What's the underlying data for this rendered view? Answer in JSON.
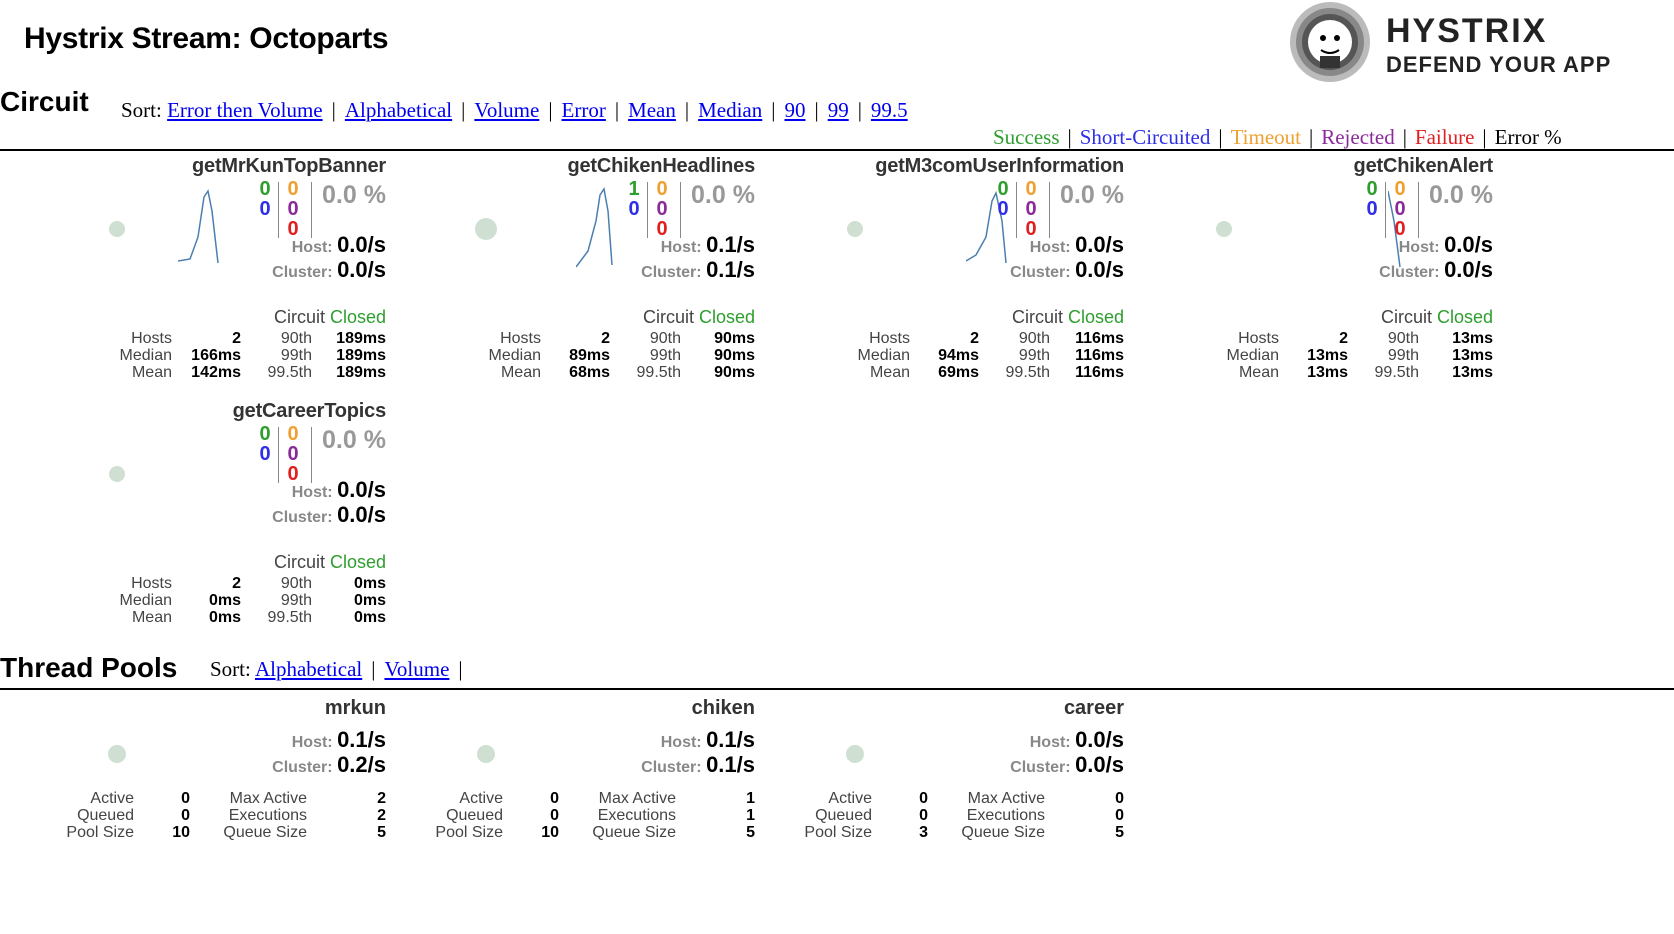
{
  "page": {
    "title": "Hystrix Stream: Octoparts"
  },
  "logo": {
    "line1": "HYSTRIX",
    "line2": "DEFEND YOUR APP"
  },
  "circuit": {
    "title": "Circuit",
    "sort_label": "Sort:",
    "sort_options": [
      "Error then Volume",
      "Alphabetical",
      "Volume",
      "Error",
      "Mean",
      "Median",
      "90",
      "99",
      "99.5"
    ]
  },
  "legend": {
    "items": [
      {
        "label": "Success",
        "color": "#2e9e2e"
      },
      {
        "label": "Short-Circuited",
        "color": "#2f2fe6"
      },
      {
        "label": "Timeout",
        "color": "#f0a030"
      },
      {
        "label": "Rejected",
        "color": "#8b2a9b"
      },
      {
        "label": "Failure",
        "color": "#e02020"
      },
      {
        "label": "Error %",
        "color": "#000000"
      }
    ]
  },
  "labels": {
    "host": "Host:",
    "cluster": "Cluster:",
    "circuit": "Circuit",
    "hosts": "Hosts",
    "median": "Median",
    "mean": "Mean",
    "p90": "90th",
    "p99": "99th",
    "p995": "99.5th",
    "active": "Active",
    "queued": "Queued",
    "pool_size": "Pool Size",
    "max_active": "Max Active",
    "executions": "Executions",
    "queue_size": "Queue Size"
  },
  "circuits": [
    {
      "name": "getMrKunTopBanner",
      "success": "0",
      "short_circuited": "0",
      "timeout": "0",
      "rejected": "0",
      "failure": "0",
      "error_pct": "0.0 %",
      "host_rate": "0.0/s",
      "cluster_rate": "0.0/s",
      "status": "Closed",
      "hosts": "2",
      "median": "166ms",
      "mean": "142ms",
      "p90": "189ms",
      "p99": "189ms",
      "p995": "189ms"
    },
    {
      "name": "getChikenHeadlines",
      "success": "1",
      "short_circuited": "0",
      "timeout": "0",
      "rejected": "0",
      "failure": "0",
      "error_pct": "0.0 %",
      "host_rate": "0.1/s",
      "cluster_rate": "0.1/s",
      "status": "Closed",
      "hosts": "2",
      "median": "89ms",
      "mean": "68ms",
      "p90": "90ms",
      "p99": "90ms",
      "p995": "90ms"
    },
    {
      "name": "getM3comUserInformation",
      "success": "0",
      "short_circuited": "0",
      "timeout": "0",
      "rejected": "0",
      "failure": "0",
      "error_pct": "0.0 %",
      "host_rate": "0.0/s",
      "cluster_rate": "0.0/s",
      "status": "Closed",
      "hosts": "2",
      "median": "94ms",
      "mean": "69ms",
      "p90": "116ms",
      "p99": "116ms",
      "p995": "116ms"
    },
    {
      "name": "getChikenAlert",
      "success": "0",
      "short_circuited": "0",
      "timeout": "0",
      "rejected": "0",
      "failure": "0",
      "error_pct": "0.0 %",
      "host_rate": "0.0/s",
      "cluster_rate": "0.0/s",
      "status": "Closed",
      "hosts": "2",
      "median": "13ms",
      "mean": "13ms",
      "p90": "13ms",
      "p99": "13ms",
      "p995": "13ms"
    },
    {
      "name": "getCareerTopics",
      "success": "0",
      "short_circuited": "0",
      "timeout": "0",
      "rejected": "0",
      "failure": "0",
      "error_pct": "0.0 %",
      "host_rate": "0.0/s",
      "cluster_rate": "0.0/s",
      "status": "Closed",
      "hosts": "2",
      "median": "0ms",
      "mean": "0ms",
      "p90": "0ms",
      "p99": "0ms",
      "p995": "0ms"
    }
  ],
  "thread_pools": {
    "title": "Thread Pools",
    "sort_label": "Sort:",
    "sort_options": [
      "Alphabetical",
      "Volume"
    ],
    "pools": [
      {
        "name": "mrkun",
        "host_rate": "0.1/s",
        "cluster_rate": "0.2/s",
        "active": "0",
        "queued": "0",
        "pool_size": "10",
        "max_active": "2",
        "executions": "2",
        "queue_size": "5"
      },
      {
        "name": "chiken",
        "host_rate": "0.1/s",
        "cluster_rate": "0.1/s",
        "active": "0",
        "queued": "0",
        "pool_size": "10",
        "max_active": "1",
        "executions": "1",
        "queue_size": "5"
      },
      {
        "name": "career",
        "host_rate": "0.0/s",
        "cluster_rate": "0.0/s",
        "active": "0",
        "queued": "0",
        "pool_size": "3",
        "max_active": "0",
        "executions": "0",
        "queue_size": "5"
      }
    ]
  }
}
